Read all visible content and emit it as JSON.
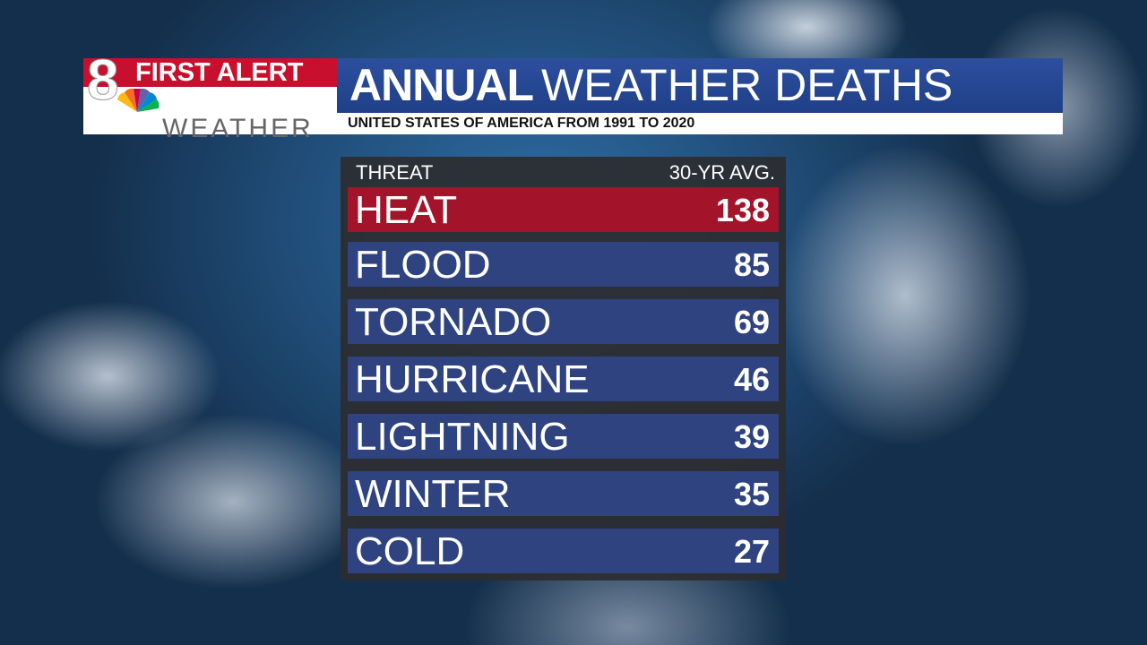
{
  "header": {
    "logo": {
      "number": "8",
      "top": "FIRST ALERT",
      "bottom": "WEATHER"
    },
    "title": {
      "bold": "ANNUAL",
      "regular": "WEATHER DEATHS"
    },
    "subtitle": "UNITED STATES OF AMERICA FROM 1991 TO 2020"
  },
  "table": {
    "columns": [
      "THREAT",
      "30-YR AVG."
    ],
    "rows": [
      [
        "HEAT",
        "138"
      ],
      [
        "FLOOD",
        "85"
      ],
      [
        "TORNADO",
        "69"
      ],
      [
        "HURRICANE",
        "46"
      ],
      [
        "LIGHTNING",
        "39"
      ],
      [
        "WINTER",
        "35"
      ],
      [
        "COLD",
        "27"
      ]
    ]
  }
}
